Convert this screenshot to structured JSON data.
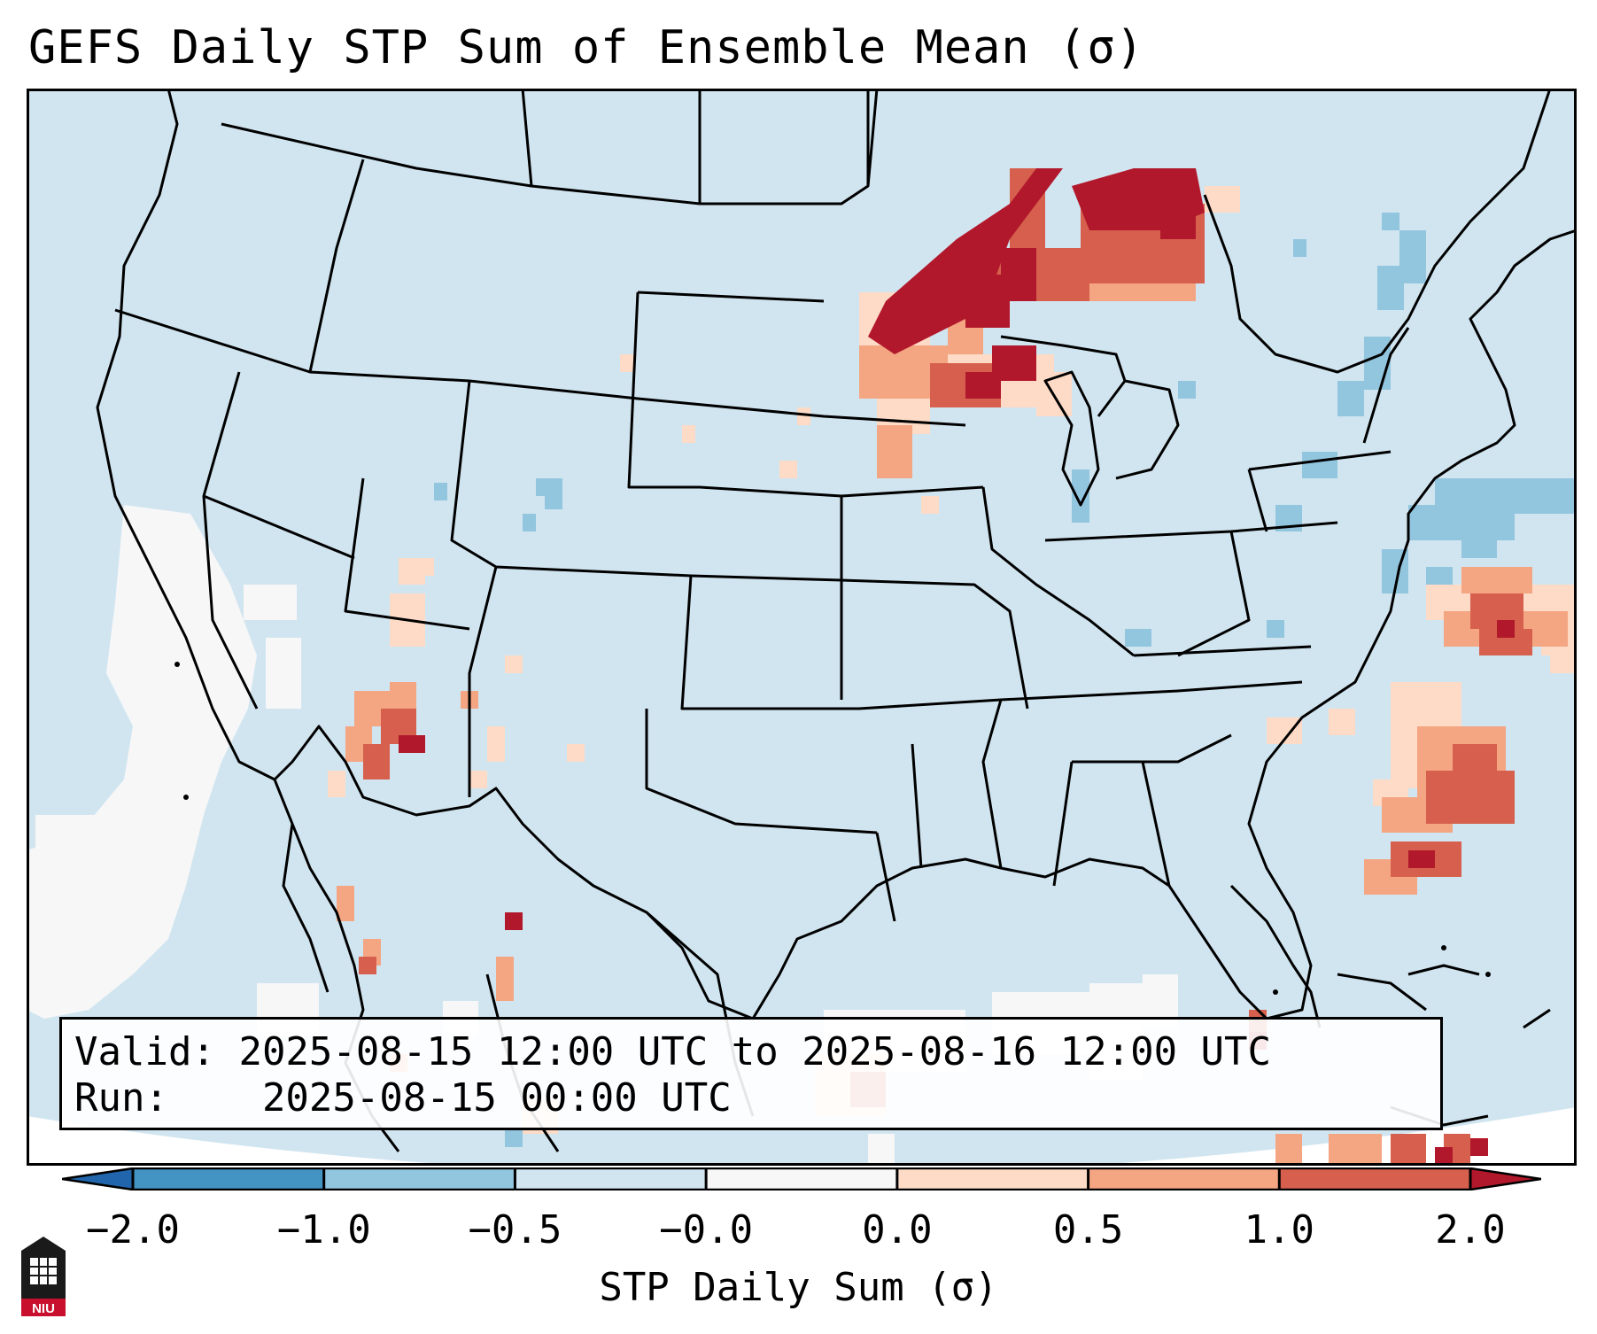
{
  "title": "GEFS Daily STP Sum of Ensemble Mean (σ)",
  "info": {
    "valid_label": "Valid:",
    "valid_value": "2025-08-15 12:00 UTC to 2025-08-16 12:00 UTC",
    "run_label": "Run:",
    "run_value": "2025-08-15 00:00 UTC"
  },
  "colorbar": {
    "label": "STP Daily Sum (σ)",
    "ticks": [
      "−2.0",
      "−1.0",
      "−0.5",
      "−0.0",
      "0.0",
      "0.5",
      "1.0",
      "2.0"
    ],
    "colors": [
      "#2166ac",
      "#4393c3",
      "#92c5de",
      "#d1e5f0",
      "#fddbc7",
      "#f4a582",
      "#d6604d",
      "#b2182b"
    ],
    "bin_colors_in_order": [
      "#4393c3",
      "#92c5de",
      "#d1e5f0",
      "#f7f7f7",
      "#fddbc7",
      "#f4a582",
      "#d6604d"
    ],
    "under_color": "#2166ac",
    "over_color": "#b2182b"
  },
  "map": {
    "background_color": "#d1e5f0",
    "domain": "Continental United States",
    "projection": "Lambert Conformal"
  },
  "logo": {
    "text": "NIU"
  }
}
